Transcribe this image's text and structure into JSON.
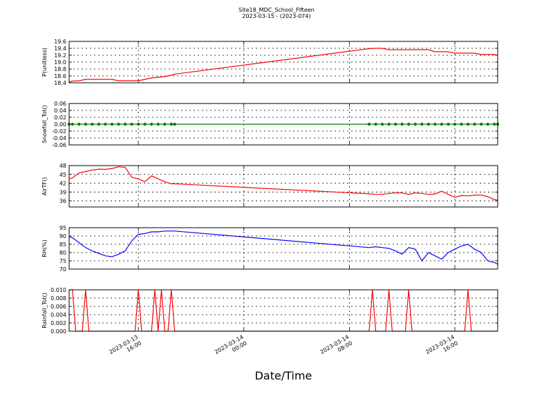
{
  "chart_data": [
    {
      "type": "line",
      "title": "Site18_MDC_School_Fifteen",
      "subtitle": "2023-03-15 - (2023-074)",
      "ylabel": "P(unitless)",
      "color": "#ff0000",
      "grid": true,
      "xlim": [
        "2023-03-13 10:45",
        "2023-03-14 19:15"
      ],
      "xticks": [
        "2023-03-13 16:00",
        "2023-03-14 00:00",
        "2023-03-14 08:00",
        "2023-03-14 16:00"
      ],
      "ylim": [
        18.4,
        19.6
      ],
      "yticks": [
        18.4,
        18.6,
        18.8,
        {
          "value": 19,
          "label": "19.0"
        },
        19.2,
        19.4,
        19.6
      ],
      "x": [
        "2023-03-13 10:45",
        "2023-03-13 11:00",
        "2023-03-13 11:30",
        "2023-03-13 12:00",
        "2023-03-13 12:30",
        "2023-03-13 13:00",
        "2023-03-13 13:30",
        "2023-03-13 14:00",
        "2023-03-13 14:30",
        "2023-03-13 15:00",
        "2023-03-13 15:30",
        "2023-03-13 16:00",
        "2023-03-13 16:30",
        "2023-03-13 17:00",
        "2023-03-13 17:30",
        "2023-03-13 18:00",
        "2023-03-13 18:30",
        "2023-03-13 18:45",
        "2023-03-14 09:30",
        "2023-03-14 10:00",
        "2023-03-14 10:30",
        "2023-03-14 11:00",
        "2023-03-14 11:30",
        "2023-03-14 12:00",
        "2023-03-14 12:30",
        "2023-03-14 13:00",
        "2023-03-14 13:30",
        "2023-03-14 14:00",
        "2023-03-14 14:30",
        "2023-03-14 15:00",
        "2023-03-14 15:30",
        "2023-03-14 16:00",
        "2023-03-14 16:30",
        "2023-03-14 17:00",
        "2023-03-14 17:30",
        "2023-03-14 18:00",
        "2023-03-14 18:30",
        "2023-03-14 19:00",
        "2023-03-14 19:15"
      ],
      "values": [
        18.42,
        18.45,
        18.46,
        18.5,
        18.5,
        18.5,
        18.5,
        18.5,
        18.46,
        18.46,
        18.46,
        18.46,
        18.5,
        18.54,
        18.56,
        18.58,
        18.62,
        18.65,
        19.39,
        19.4,
        19.4,
        19.36,
        19.36,
        19.36,
        19.36,
        19.36,
        19.36,
        19.36,
        19.3,
        19.3,
        19.3,
        19.26,
        19.26,
        19.26,
        19.26,
        19.22,
        19.22,
        19.22,
        19.2
      ]
    },
    {
      "type": "line",
      "ylabel": "Snowfall_Tot()",
      "color": "#008000",
      "marker": "o",
      "grid": true,
      "xlim": [
        "2023-03-13 10:45",
        "2023-03-14 19:15"
      ],
      "xticks": [
        "2023-03-13 16:00",
        "2023-03-14 00:00",
        "2023-03-14 08:00",
        "2023-03-14 16:00"
      ],
      "ylim": [
        -0.06,
        0.06
      ],
      "yticks": [
        -0.06,
        -0.04,
        -0.02,
        {
          "value": 0,
          "label": "0.00"
        },
        0.02,
        0.04,
        0.06
      ],
      "x": [
        "2023-03-13 10:45",
        "2023-03-13 11:00",
        "2023-03-13 11:30",
        "2023-03-13 12:00",
        "2023-03-13 12:30",
        "2023-03-13 13:00",
        "2023-03-13 13:30",
        "2023-03-13 14:00",
        "2023-03-13 14:30",
        "2023-03-13 15:00",
        "2023-03-13 15:30",
        "2023-03-13 16:00",
        "2023-03-13 16:30",
        "2023-03-13 17:00",
        "2023-03-13 17:30",
        "2023-03-13 18:00",
        "2023-03-13 18:30",
        "2023-03-13 18:45",
        "2023-03-14 09:30",
        "2023-03-14 10:00",
        "2023-03-14 10:30",
        "2023-03-14 11:00",
        "2023-03-14 11:30",
        "2023-03-14 12:00",
        "2023-03-14 12:30",
        "2023-03-14 13:00",
        "2023-03-14 13:30",
        "2023-03-14 14:00",
        "2023-03-14 14:30",
        "2023-03-14 15:00",
        "2023-03-14 15:30",
        "2023-03-14 16:00",
        "2023-03-14 16:30",
        "2023-03-14 17:00",
        "2023-03-14 17:30",
        "2023-03-14 18:00",
        "2023-03-14 18:30",
        "2023-03-14 19:00",
        "2023-03-14 19:15"
      ],
      "values": [
        0,
        0,
        0,
        0,
        0,
        0,
        0,
        0,
        0,
        0,
        0,
        0,
        0,
        0,
        0,
        0,
        0,
        0,
        0,
        0,
        0,
        0,
        0,
        0,
        0,
        0,
        0,
        0,
        0,
        0,
        0,
        0,
        0,
        0,
        0,
        0,
        0,
        0,
        0
      ]
    },
    {
      "type": "line",
      "ylabel": "AirTF()",
      "color": "#ff0000",
      "grid": true,
      "xlim": [
        "2023-03-13 10:45",
        "2023-03-14 19:15"
      ],
      "xticks": [
        "2023-03-13 16:00",
        "2023-03-14 00:00",
        "2023-03-14 08:00",
        "2023-03-14 16:00"
      ],
      "ylim": [
        33.9,
        48
      ],
      "yticks": [
        36,
        39,
        42,
        45,
        48
      ],
      "x": [
        "2023-03-13 10:45",
        "2023-03-13 11:00",
        "2023-03-13 11:30",
        "2023-03-13 12:00",
        "2023-03-13 12:30",
        "2023-03-13 13:00",
        "2023-03-13 13:30",
        "2023-03-13 14:00",
        "2023-03-13 14:30",
        "2023-03-13 15:00",
        "2023-03-13 15:30",
        "2023-03-13 16:00",
        "2023-03-13 16:30",
        "2023-03-13 17:00",
        "2023-03-13 17:30",
        "2023-03-13 18:00",
        "2023-03-13 18:30",
        "2023-03-13 18:45",
        "2023-03-14 09:30",
        "2023-03-14 10:00",
        "2023-03-14 10:30",
        "2023-03-14 11:00",
        "2023-03-14 11:30",
        "2023-03-14 12:00",
        "2023-03-14 12:30",
        "2023-03-14 13:00",
        "2023-03-14 13:30",
        "2023-03-14 14:00",
        "2023-03-14 14:30",
        "2023-03-14 15:00",
        "2023-03-14 15:30",
        "2023-03-14 16:00",
        "2023-03-14 16:30",
        "2023-03-14 17:00",
        "2023-03-14 17:30",
        "2023-03-14 18:00",
        "2023-03-14 18:30",
        "2023-03-14 19:00",
        "2023-03-14 19:15"
      ],
      "values": [
        43.5,
        43.8,
        45.5,
        46,
        46.5,
        46.8,
        46.7,
        47,
        47.6,
        47.4,
        44,
        43.5,
        42.5,
        44.5,
        43.5,
        42.5,
        41.8,
        41.8,
        38.4,
        38.2,
        38.2,
        38.5,
        38.7,
        38.7,
        38.2,
        38.7,
        38.5,
        38.2,
        38.3,
        39.3,
        38.2,
        37.2,
        37.8,
        37.7,
        37.9,
        38,
        37.4,
        36.4,
        36.2
      ]
    },
    {
      "type": "line",
      "ylabel": "RH(%)",
      "color": "#0000ff",
      "grid": true,
      "xlim": [
        "2023-03-13 10:45",
        "2023-03-14 19:15"
      ],
      "xticks": [
        "2023-03-13 16:00",
        "2023-03-14 00:00",
        "2023-03-14 08:00",
        "2023-03-14 16:00"
      ],
      "ylim": [
        70,
        95
      ],
      "yticks": [
        70,
        75,
        80,
        85,
        90,
        95
      ],
      "x": [
        "2023-03-13 10:45",
        "2023-03-13 11:00",
        "2023-03-13 11:30",
        "2023-03-13 12:00",
        "2023-03-13 12:30",
        "2023-03-13 13:00",
        "2023-03-13 13:30",
        "2023-03-13 14:00",
        "2023-03-13 14:30",
        "2023-03-13 15:00",
        "2023-03-13 15:30",
        "2023-03-13 16:00",
        "2023-03-13 16:30",
        "2023-03-13 17:00",
        "2023-03-13 17:30",
        "2023-03-13 18:00",
        "2023-03-13 18:30",
        "2023-03-13 18:45",
        "2023-03-14 09:30",
        "2023-03-14 10:00",
        "2023-03-14 10:30",
        "2023-03-14 11:00",
        "2023-03-14 11:30",
        "2023-03-14 12:00",
        "2023-03-14 12:30",
        "2023-03-14 13:00",
        "2023-03-14 13:30",
        "2023-03-14 14:00",
        "2023-03-14 14:30",
        "2023-03-14 15:00",
        "2023-03-14 15:30",
        "2023-03-14 16:00",
        "2023-03-14 16:30",
        "2023-03-14 17:00",
        "2023-03-14 17:30",
        "2023-03-14 18:00",
        "2023-03-14 18:30",
        "2023-03-14 19:00",
        "2023-03-14 19:15"
      ],
      "values": [
        89.5,
        89,
        86,
        83,
        81,
        79.5,
        78,
        77.5,
        79,
        81,
        87,
        91,
        91.5,
        92.5,
        92.5,
        93,
        93,
        93,
        83,
        83.5,
        83,
        82.5,
        81,
        79,
        83,
        82,
        75,
        80,
        78,
        76,
        80,
        82,
        84,
        85,
        82,
        80,
        75,
        74,
        73
      ]
    },
    {
      "type": "line",
      "ylabel": "Rainfall_Tot()",
      "xlabel": "Date/Time",
      "color": "#ff0000",
      "grid": true,
      "xlim": [
        "2023-03-13 10:45",
        "2023-03-14 19:15"
      ],
      "xticks": [
        "2023-03-13 16:00",
        "2023-03-14 00:00",
        "2023-03-14 08:00",
        "2023-03-14 16:00"
      ],
      "ylim": [
        0,
        0.01
      ],
      "yticks": [
        {
          "value": 0,
          "label": "0.000"
        },
        {
          "value": 0.002,
          "label": "0.002"
        },
        {
          "value": 0.004,
          "label": "0.004"
        },
        {
          "value": 0.006,
          "label": "0.006"
        },
        {
          "value": 0.008,
          "label": "0.008"
        },
        {
          "value": 0.01,
          "label": "0.010"
        }
      ],
      "x": [
        "2023-03-13 10:45",
        "2023-03-13 11:00",
        "2023-03-13 11:15",
        "2023-03-13 11:45",
        "2023-03-13 12:00",
        "2023-03-13 12:15",
        "2023-03-13 15:45",
        "2023-03-13 16:00",
        "2023-03-13 16:15",
        "2023-03-13 17:00",
        "2023-03-13 17:15",
        "2023-03-13 17:30",
        "2023-03-13 17:45",
        "2023-03-13 18:00",
        "2023-03-13 18:15",
        "2023-03-13 18:30",
        "2023-03-13 18:45",
        "2023-03-14 09:30",
        "2023-03-14 09:45",
        "2023-03-14 10:00",
        "2023-03-14 10:45",
        "2023-03-14 11:00",
        "2023-03-14 11:15",
        "2023-03-14 12:15",
        "2023-03-14 12:30",
        "2023-03-14 12:45",
        "2023-03-14 16:45",
        "2023-03-14 17:00",
        "2023-03-14 17:15",
        "2023-03-14 19:15"
      ],
      "values": [
        0.01,
        0.01,
        0,
        0,
        0.01,
        0,
        0,
        0.01,
        0,
        0,
        0.01,
        0,
        0.01,
        0,
        0,
        0.01,
        0,
        0,
        0.01,
        0,
        0,
        0.01,
        0,
        0,
        0.01,
        0,
        0,
        0.01,
        0,
        0
      ]
    }
  ]
}
